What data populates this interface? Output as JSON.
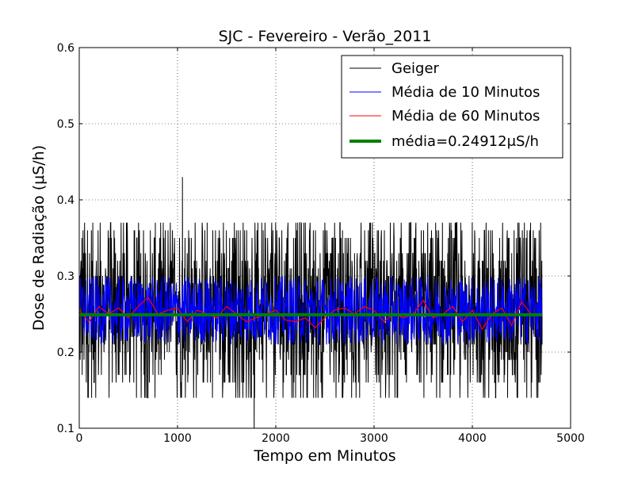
{
  "chart_data": {
    "type": "line",
    "title": "SJC - Fevereiro - Verão_2011",
    "xlabel": "Tempo em Minutos",
    "ylabel": "Dose de Radiação (μS/h)",
    "xlim": [
      0,
      5000
    ],
    "ylim": [
      0.1,
      0.6
    ],
    "xticks": [
      0,
      1000,
      2000,
      3000,
      4000,
      5000
    ],
    "xtick_labels": [
      "0",
      "1000",
      "2000",
      "3000",
      "4000",
      "5000"
    ],
    "yticks": [
      0.1,
      0.2,
      0.3,
      0.4,
      0.5,
      0.6
    ],
    "ytick_labels": [
      "0.1",
      "0.2",
      "0.3",
      "0.4",
      "0.5",
      "0.6"
    ],
    "grid": true,
    "legend_position": "top-right",
    "series": [
      {
        "name": "Geiger",
        "color": "#000000",
        "x_range": [
          0,
          4710
        ],
        "mean": 0.24912,
        "min": 0.08,
        "max": 0.43,
        "samples_x": [
          0,
          300,
          600,
          900,
          1050,
          1200,
          1500,
          1780,
          2100,
          2400,
          2700,
          3000,
          3300,
          3600,
          3900,
          4200,
          4500,
          4710
        ],
        "samples_y": [
          0.26,
          0.24,
          0.25,
          0.23,
          0.43,
          0.25,
          0.26,
          0.08,
          0.24,
          0.25,
          0.26,
          0.25,
          0.24,
          0.26,
          0.25,
          0.24,
          0.26,
          0.25
        ]
      },
      {
        "name": "Média de 10 Minutos",
        "color": "#0000ff",
        "x_range": [
          0,
          4710
        ],
        "band": [
          0.21,
          0.3
        ]
      },
      {
        "name": "Média de 60 Minutos",
        "color": "#ff0000",
        "x": [
          0,
          100,
          200,
          300,
          400,
          500,
          600,
          700,
          800,
          900,
          1000,
          1100,
          1200,
          1300,
          1400,
          1500,
          1600,
          1700,
          1800,
          1900,
          2000,
          2100,
          2200,
          2300,
          2400,
          2500,
          2600,
          2700,
          2800,
          2900,
          3000,
          3100,
          3200,
          3300,
          3400,
          3500,
          3600,
          3700,
          3800,
          3900,
          4000,
          4100,
          4200,
          4300,
          4400,
          4500,
          4600,
          4700
        ],
        "y": [
          0.255,
          0.24,
          0.26,
          0.25,
          0.258,
          0.245,
          0.26,
          0.272,
          0.25,
          0.255,
          0.258,
          0.24,
          0.255,
          0.25,
          0.245,
          0.26,
          0.25,
          0.24,
          0.245,
          0.25,
          0.255,
          0.242,
          0.24,
          0.245,
          0.232,
          0.245,
          0.255,
          0.258,
          0.25,
          0.26,
          0.255,
          0.24,
          0.25,
          0.245,
          0.25,
          0.268,
          0.245,
          0.25,
          0.26,
          0.24,
          0.255,
          0.23,
          0.25,
          0.258,
          0.235,
          0.266,
          0.25,
          0.25
        ]
      },
      {
        "name": "média=0.24912μS/h",
        "color": "#008000",
        "x": [
          0,
          4710
        ],
        "y": [
          0.24912,
          0.24912
        ]
      }
    ]
  }
}
